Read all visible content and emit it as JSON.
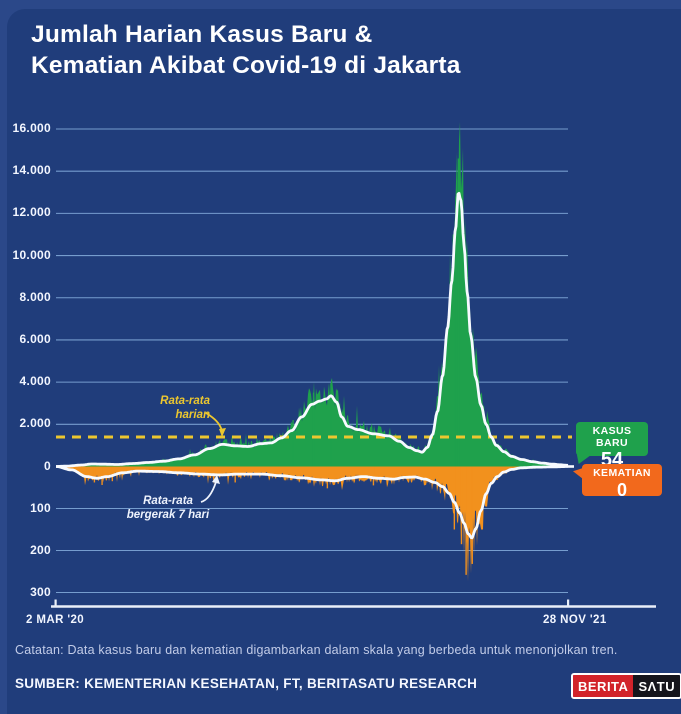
{
  "title": {
    "line1": "Jumlah Harian Kasus Baru &",
    "line2": "Kematian Akibat Covid-19 di Jakarta"
  },
  "colors": {
    "background": "#203d7b",
    "frame": "#2b4889",
    "cases_area": "#1fa14c",
    "deaths_area": "#f2911d",
    "cases_badge": "#1fa14c",
    "deaths_badge": "#f2691c",
    "ma_line": "#f7faff",
    "avg_dashed_line": "#ecc72f",
    "grid": "#86aedd",
    "axis": "#e9eff9",
    "logo_red": "#d2232a",
    "logo_black": "#15151c"
  },
  "chart_data": {
    "type": "area",
    "title": "Jumlah Harian Kasus Baru & Kematian Akibat Covid-19 di Jakarta",
    "x_range": [
      "2 MAR '20",
      "28 NOV '21"
    ],
    "grid": true,
    "cases_axis": {
      "max": 16000,
      "ticks": [
        {
          "label": "16.000",
          "value": 16000
        },
        {
          "label": "14.000",
          "value": 14000
        },
        {
          "label": "12.000",
          "value": 12000
        },
        {
          "label": "10.000",
          "value": 10000
        },
        {
          "label": "8.000",
          "value": 8000
        },
        {
          "label": "6.000",
          "value": 6000
        },
        {
          "label": "4.000",
          "value": 4000
        },
        {
          "label": "2.000",
          "value": 2000
        },
        {
          "label": "0",
          "value": 0
        }
      ]
    },
    "deaths_axis": {
      "max": 300,
      "ticks": [
        {
          "label": "100",
          "value": 100
        },
        {
          "label": "200",
          "value": 200
        },
        {
          "label": "300",
          "value": 300
        }
      ]
    },
    "avg_line_value": 1400,
    "series": [
      {
        "name": "kasus-baru-rata-rata-7-hari",
        "points": [
          [
            0,
            0
          ],
          [
            0.02,
            15
          ],
          [
            0.05,
            70
          ],
          [
            0.07,
            120
          ],
          [
            0.09,
            110
          ],
          [
            0.12,
            95
          ],
          [
            0.15,
            140
          ],
          [
            0.18,
            190
          ],
          [
            0.21,
            250
          ],
          [
            0.24,
            360
          ],
          [
            0.27,
            550
          ],
          [
            0.3,
            850
          ],
          [
            0.325,
            1050
          ],
          [
            0.35,
            980
          ],
          [
            0.375,
            950
          ],
          [
            0.4,
            1080
          ],
          [
            0.42,
            1120
          ],
          [
            0.44,
            1350
          ],
          [
            0.46,
            1700
          ],
          [
            0.48,
            2350
          ],
          [
            0.5,
            2950
          ],
          [
            0.515,
            3100
          ],
          [
            0.528,
            3200
          ],
          [
            0.537,
            3350
          ],
          [
            0.548,
            3050
          ],
          [
            0.558,
            2350
          ],
          [
            0.57,
            1900
          ],
          [
            0.59,
            1750
          ],
          [
            0.62,
            1550
          ],
          [
            0.65,
            1450
          ],
          [
            0.67,
            1200
          ],
          [
            0.69,
            900
          ],
          [
            0.705,
            750
          ],
          [
            0.715,
            680
          ],
          [
            0.725,
            900
          ],
          [
            0.735,
            1500
          ],
          [
            0.745,
            2600
          ],
          [
            0.755,
            4300
          ],
          [
            0.765,
            6600
          ],
          [
            0.773,
            8800
          ],
          [
            0.78,
            11200
          ],
          [
            0.786,
            13000
          ],
          [
            0.791,
            12600
          ],
          [
            0.797,
            10500
          ],
          [
            0.803,
            8300
          ],
          [
            0.81,
            6200
          ],
          [
            0.82,
            4200
          ],
          [
            0.83,
            2900
          ],
          [
            0.84,
            2000
          ],
          [
            0.85,
            1400
          ],
          [
            0.86,
            1000
          ],
          [
            0.875,
            700
          ],
          [
            0.89,
            480
          ],
          [
            0.91,
            330
          ],
          [
            0.93,
            230
          ],
          [
            0.95,
            160
          ],
          [
            0.97,
            110
          ],
          [
            0.985,
            80
          ],
          [
            1,
            54
          ]
        ]
      },
      {
        "name": "kematian-rata-rata-7-hari",
        "points": [
          [
            0,
            0
          ],
          [
            0.03,
            8
          ],
          [
            0.06,
            24
          ],
          [
            0.08,
            28
          ],
          [
            0.1,
            24
          ],
          [
            0.13,
            15
          ],
          [
            0.16,
            11
          ],
          [
            0.2,
            12
          ],
          [
            0.24,
            15
          ],
          [
            0.28,
            18
          ],
          [
            0.32,
            20
          ],
          [
            0.36,
            18
          ],
          [
            0.4,
            18
          ],
          [
            0.44,
            22
          ],
          [
            0.48,
            27
          ],
          [
            0.52,
            32
          ],
          [
            0.545,
            34
          ],
          [
            0.57,
            28
          ],
          [
            0.6,
            24
          ],
          [
            0.63,
            28
          ],
          [
            0.66,
            30
          ],
          [
            0.68,
            26
          ],
          [
            0.7,
            25
          ],
          [
            0.72,
            30
          ],
          [
            0.74,
            38
          ],
          [
            0.755,
            48
          ],
          [
            0.768,
            64
          ],
          [
            0.778,
            85
          ],
          [
            0.788,
            110
          ],
          [
            0.797,
            135
          ],
          [
            0.805,
            160
          ],
          [
            0.812,
            170
          ],
          [
            0.82,
            148
          ],
          [
            0.83,
            105
          ],
          [
            0.84,
            65
          ],
          [
            0.85,
            40
          ],
          [
            0.862,
            24
          ],
          [
            0.875,
            13
          ],
          [
            0.89,
            7
          ],
          [
            0.91,
            3
          ],
          [
            0.94,
            1.5
          ],
          [
            0.97,
            0.8
          ],
          [
            1,
            0
          ]
        ]
      }
    ],
    "cases_daily_spikes": [
      [
        0.786,
        14600
      ],
      [
        0.781,
        12800
      ],
      [
        0.776,
        11000
      ],
      [
        0.537,
        3950
      ],
      [
        0.503,
        3500
      ],
      [
        0.463,
        2200
      ]
    ],
    "deaths_daily_spikes": [
      [
        0.801,
        258
      ],
      [
        0.813,
        232
      ],
      [
        0.792,
        185
      ],
      [
        0.778,
        150
      ],
      [
        0.09,
        44
      ],
      [
        0.075,
        38
      ],
      [
        0.11,
        35
      ],
      [
        0.35,
        38
      ],
      [
        0.53,
        52
      ],
      [
        0.62,
        45
      ]
    ],
    "latest": {
      "kasus_baru": 54,
      "kematian": 0
    }
  },
  "annotations": {
    "daily_avg": {
      "line1": "Rata-rata",
      "line2": "harian"
    },
    "moving_avg": {
      "line1": "Rata-rata",
      "line2": "bergerak 7 hari"
    }
  },
  "badges": {
    "cases": {
      "label": "KASUS BARU",
      "value": "54"
    },
    "deaths": {
      "label": "KEMATIAN",
      "value": "0"
    }
  },
  "x_axis": {
    "start_label": "2 MAR '20",
    "end_label": "28 NOV '21"
  },
  "note": "Catatan: Data kasus baru dan kematian digambarkan dalam skala yang berbeda untuk menonjolkan tren.",
  "source": "SUMBER: KEMENTERIAN KESEHATAN, FT, BERITASATU RESEARCH",
  "logo": {
    "part1": "BERITA",
    "part2": "SΛTU"
  }
}
